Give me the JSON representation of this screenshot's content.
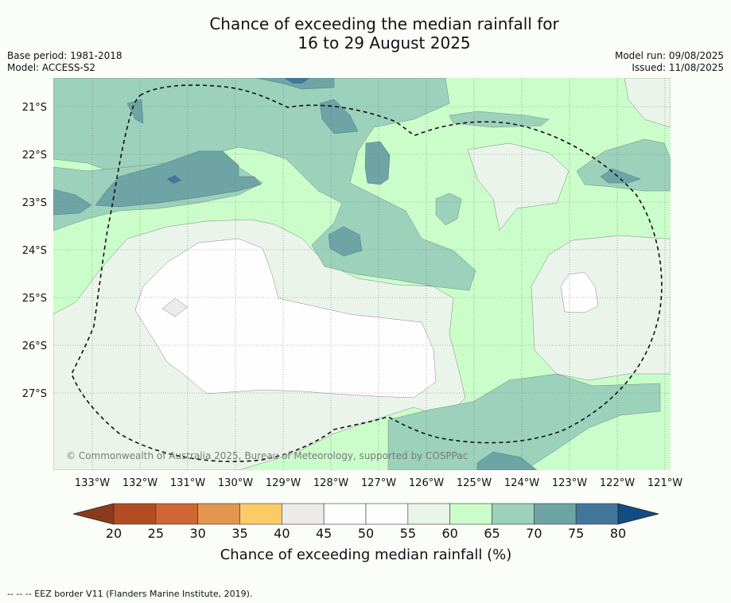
{
  "title": {
    "line1": "Chance of exceeding the median rainfall for",
    "line2": "16 to 29 August 2025"
  },
  "meta_left": {
    "base_period": "Base period: 1981-2018",
    "model": "Model: ACCESS-S2"
  },
  "meta_right": {
    "model_run": "Model run: 09/08/2025",
    "issued": "Issued: 11/08/2025"
  },
  "copyright": "© Commonwealth of Australia 2025, Bureau of Meteorology, supported by COSPPac",
  "lat_labels": [
    "21°S",
    "22°S",
    "23°S",
    "24°S",
    "25°S",
    "26°S",
    "27°S"
  ],
  "lon_labels": [
    "133°W",
    "132°W",
    "131°W",
    "130°W",
    "129°W",
    "128°W",
    "127°W",
    "126°W",
    "125°W",
    "124°W",
    "123°W",
    "122°W",
    "121°W"
  ],
  "colorbar": {
    "ticks": [
      "20",
      "25",
      "30",
      "35",
      "40",
      "45",
      "50",
      "55",
      "60",
      "65",
      "70",
      "75",
      "80"
    ],
    "colors": [
      "#b34c22",
      "#cf6633",
      "#e2964d",
      "#fdcb66",
      "#ecebe7",
      "#fefefe",
      "#fefefe",
      "#eaf4ea",
      "#cbfdcb",
      "#9cd1bb",
      "#6ea4a5",
      "#43769a"
    ],
    "low_color": "#8a3b1b",
    "high_color": "#134c85",
    "label": "Chance of exceeding median rainfall (%)"
  },
  "footer": "--  --  -- EEZ border V11 (Flanders Marine Institute, 2019)."
}
